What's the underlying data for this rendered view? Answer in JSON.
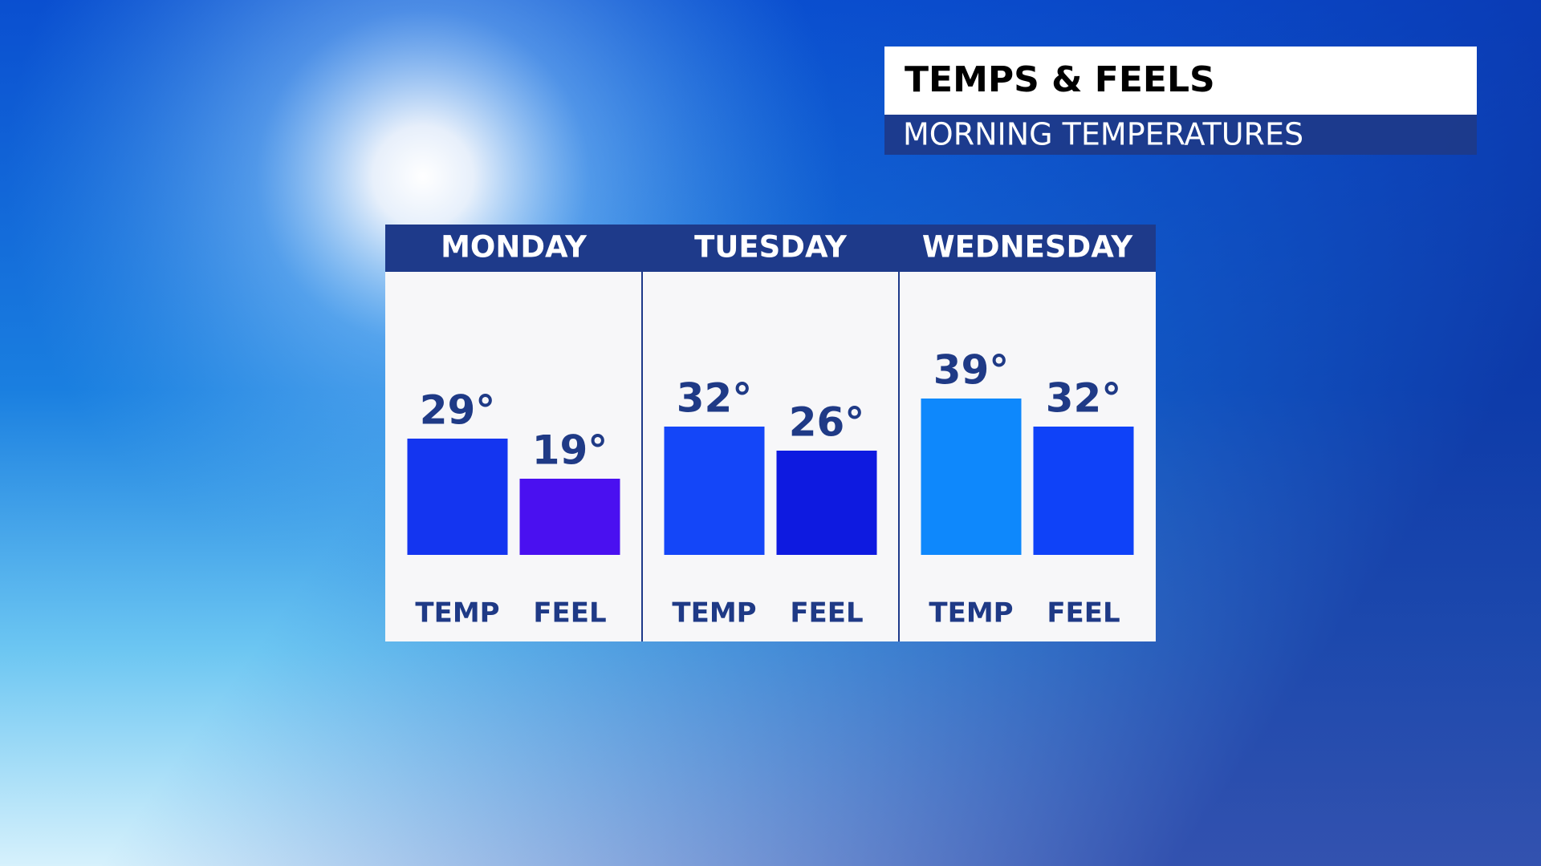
{
  "chart_data": {
    "type": "bar",
    "title": "TEMPS & FEELS",
    "subtitle": "MORNING TEMPERATURES",
    "categories": [
      "MONDAY",
      "TUESDAY",
      "WEDNESDAY"
    ],
    "series": [
      {
        "name": "TEMP",
        "colors": [
          "#1435f0",
          "#1446f8",
          "#0e88fc"
        ],
        "values": [
          29,
          32,
          39
        ],
        "value_labels": [
          "29°",
          "32°",
          "39°"
        ]
      },
      {
        "name": "FEEL",
        "colors": [
          "#4a10f0",
          "#0e1ae0",
          "#0f42f8"
        ],
        "values": [
          19,
          26,
          32
        ],
        "value_labels": [
          "19°",
          "26°",
          "32°"
        ]
      }
    ],
    "ylim": [
      -7,
      63
    ]
  }
}
